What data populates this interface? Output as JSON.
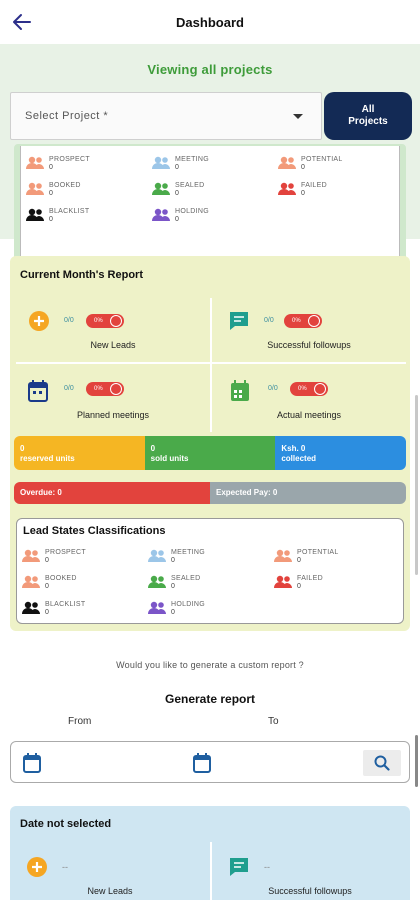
{
  "appbar": {
    "title": "Dashboard",
    "back_icon": "arrow-left-icon"
  },
  "filter": {
    "viewing_text": "Viewing all projects",
    "select_placeholder": "Select Project *",
    "all_projects_line1": "All",
    "all_projects_line2": "Projects"
  },
  "classifications": [
    {
      "name": "PROSPECT",
      "count": "0",
      "color": "#f29a7a"
    },
    {
      "name": "MEETING",
      "count": "0",
      "color": "#9cc6e8"
    },
    {
      "name": "POTENTIAL",
      "count": "0",
      "color": "#f29a7a"
    },
    {
      "name": "BOOKED",
      "count": "0",
      "color": "#f29a7a"
    },
    {
      "name": "SEALED",
      "count": "0",
      "color": "#4aaa4a"
    },
    {
      "name": "FAILED",
      "count": "0",
      "color": "#e2433d"
    },
    {
      "name": "BLACKLIST",
      "count": "0",
      "color": "#111111"
    },
    {
      "name": "HOLDING",
      "count": "0",
      "color": "#7b55c8"
    }
  ],
  "current_report": {
    "title": "Current Month's Report",
    "metrics": [
      {
        "label": "New Leads",
        "ratio": "0/0",
        "percent": "0%",
        "icon": "plus-circle-icon",
        "color": "#f5a623"
      },
      {
        "label": "Successful followups",
        "ratio": "0/0",
        "percent": "0%",
        "icon": "chat-icon",
        "color": "#1f9e8e"
      },
      {
        "label": "Planned meetings",
        "ratio": "0/0",
        "percent": "0%",
        "icon": "calendar-icon",
        "color": "#1a3a8a"
      },
      {
        "label": "Actual meetings",
        "ratio": "0/0",
        "percent": "0%",
        "icon": "calendar-icon",
        "color": "#4aaa4a"
      }
    ],
    "units": {
      "reserved_value": "0",
      "reserved_label": "reserved units",
      "sold_value": "0",
      "sold_label": "sold units",
      "collected_value": "Ksh. 0",
      "collected_label": "collected"
    },
    "overdue": "Overdue: 0",
    "expected_pay": "Expected Pay: 0",
    "lead_states_title": "Lead States Classifications"
  },
  "custom": {
    "question": "Would you like to generate a custom report ?",
    "generate_title": "Generate report",
    "from_label": "From",
    "to_label": "To"
  },
  "custom_report": {
    "title": "Date not selected",
    "placeholder": "--",
    "metric1": "New Leads",
    "metric2": "Successful followups"
  }
}
